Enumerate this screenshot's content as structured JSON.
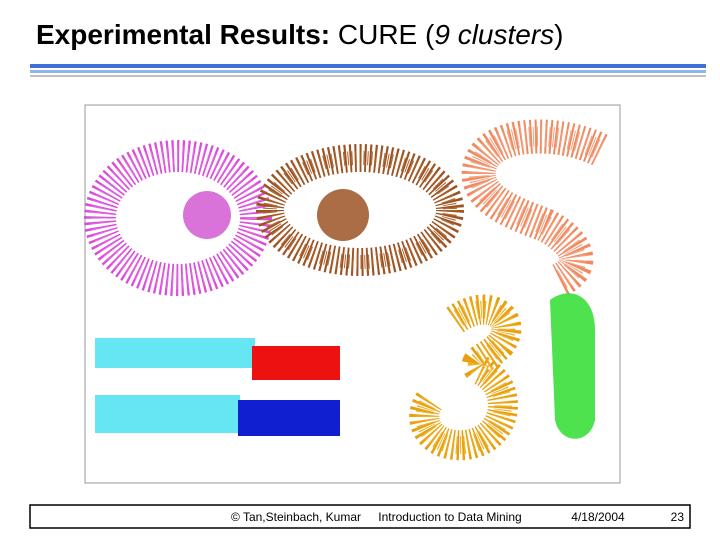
{
  "title": {
    "bold": "Experimental Results:",
    "plain": "CURE (",
    "italic": "9 clusters",
    "close": ")"
  },
  "footer": {
    "copyright": "© Tan,Steinbach, Kumar",
    "course": "Introduction to Data Mining",
    "date": "4/18/2004",
    "page": "23"
  }
}
